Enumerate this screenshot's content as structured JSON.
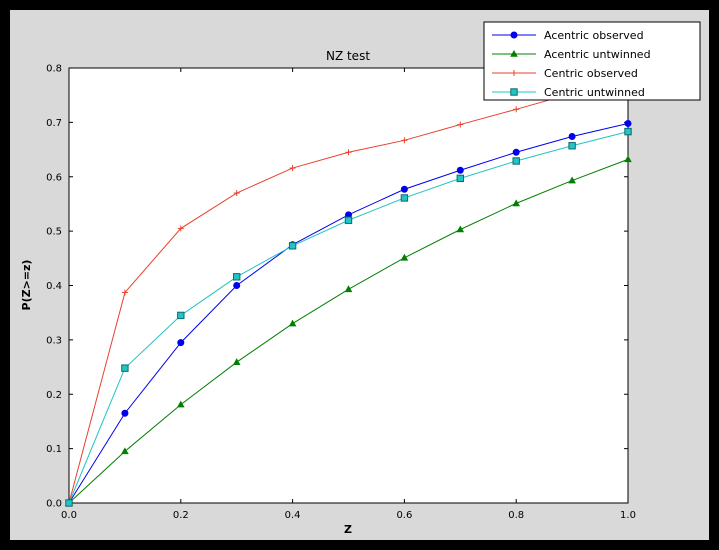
{
  "window": {
    "background": "#000000",
    "figure_background": "#d9d9d9",
    "axes_background": "#ffffff"
  },
  "chart_data": {
    "type": "line",
    "title": "NZ test",
    "xlabel": "Z",
    "ylabel": "P(Z>=z)",
    "xlim": [
      0.0,
      1.0
    ],
    "ylim": [
      0.0,
      0.8
    ],
    "xticks": [
      0.0,
      0.2,
      0.4,
      0.6,
      0.8,
      1.0
    ],
    "yticks": [
      0.0,
      0.1,
      0.2,
      0.3,
      0.4,
      0.5,
      0.6,
      0.7,
      0.8
    ],
    "grid": false,
    "legend_position": "upper right",
    "x": [
      0.0,
      0.1,
      0.2,
      0.3,
      0.4,
      0.5,
      0.6,
      0.7,
      0.8,
      0.9,
      1.0
    ],
    "series": [
      {
        "name": "Acentric observed",
        "color": "#0000ee",
        "marker": "circle",
        "values": [
          0.0,
          0.165,
          0.295,
          0.4,
          0.475,
          0.53,
          0.577,
          0.612,
          0.645,
          0.674,
          0.698
        ]
      },
      {
        "name": "Acentric untwinned",
        "color": "#007f00",
        "marker": "triangle",
        "values": [
          0.0,
          0.095,
          0.181,
          0.259,
          0.33,
          0.393,
          0.451,
          0.503,
          0.551,
          0.593,
          0.632
        ]
      },
      {
        "name": "Centric observed",
        "color": "#e8402c",
        "marker": "plus",
        "values": [
          0.0,
          0.387,
          0.505,
          0.57,
          0.616,
          0.645,
          0.667,
          0.696,
          0.724,
          0.753,
          0.779
        ]
      },
      {
        "name": "Centric untwinned",
        "color": "#22c4c4",
        "marker": "square",
        "marker_edge": "#0e6b6b",
        "values": [
          0.0,
          0.248,
          0.345,
          0.416,
          0.473,
          0.52,
          0.561,
          0.597,
          0.629,
          0.657,
          0.683
        ]
      }
    ]
  }
}
